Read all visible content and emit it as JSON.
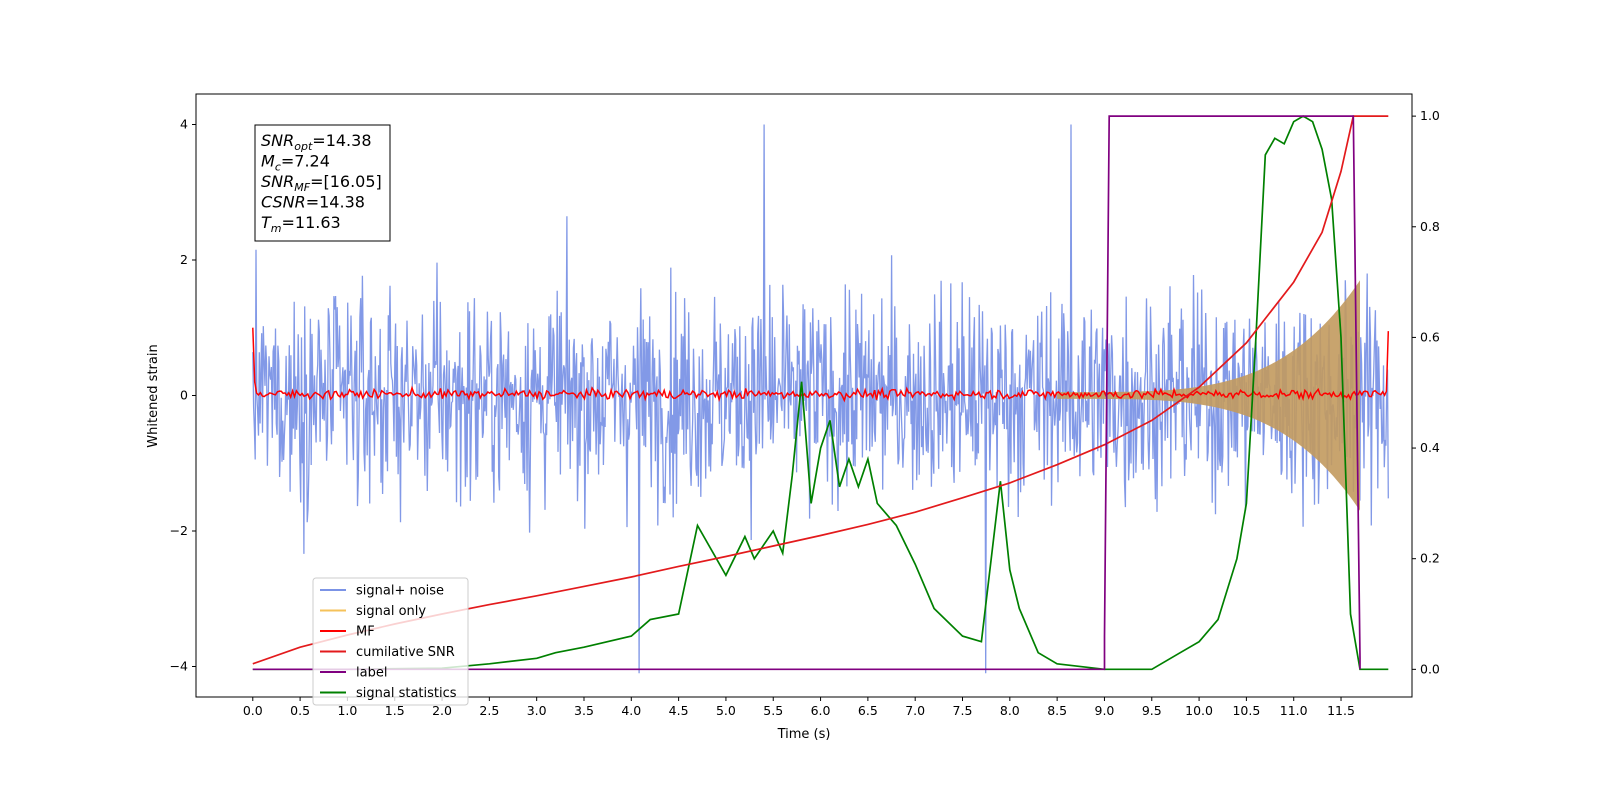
{
  "chart_data": {
    "type": "line",
    "xlabel": "Time (s)",
    "ylabel": "Whitened strain",
    "xlim": [
      -0.6,
      12.25
    ],
    "ylim_left": [
      -4.45,
      4.45
    ],
    "ylim_right": [
      -0.05,
      1.04
    ],
    "x_ticks": [
      "0.0",
      "0.5",
      "1.0",
      "1.5",
      "2.0",
      "2.5",
      "3.0",
      "3.5",
      "4.0",
      "4.5",
      "5.0",
      "5.5",
      "6.0",
      "6.5",
      "7.0",
      "7.5",
      "8.0",
      "8.5",
      "9.0",
      "9.5",
      "10.0",
      "10.5",
      "11.0",
      "11.5"
    ],
    "y_ticks_left": [
      "−4",
      "−2",
      "0",
      "2",
      "4"
    ],
    "y_ticks_right": [
      "0.0",
      "0.2",
      "0.4",
      "0.6",
      "0.8",
      "1.0"
    ],
    "legend_position": "lower-left",
    "legend": [
      {
        "label": "signal+ noise",
        "color": "#7b93e6"
      },
      {
        "label": "signal only",
        "color": "#f5c25a"
      },
      {
        "label": "MF",
        "color": "#ff0000"
      },
      {
        "label": "cumilative SNR",
        "color": "#e31a1c"
      },
      {
        "label": "label",
        "color": "#800080"
      },
      {
        "label": "signal statistics",
        "color": "#008000"
      }
    ],
    "annotation": {
      "lines": [
        {
          "sym": "SNR",
          "sub": "opt",
          "val": "=14.38"
        },
        {
          "sym": "M",
          "sub": "c",
          "val": "=7.24"
        },
        {
          "sym": "SNR",
          "sub": "MF",
          "val": "=[16.05]"
        },
        {
          "sym": "CSNR",
          "sub": "",
          "val": "=14.38"
        },
        {
          "sym": "T",
          "sub": "m",
          "val": "=11.63"
        }
      ]
    },
    "series": [
      {
        "name": "cumilative SNR",
        "axis": "right",
        "x": [
          0.0,
          0.5,
          1.0,
          1.5,
          2.0,
          2.5,
          3.0,
          3.5,
          4.0,
          4.5,
          5.0,
          5.5,
          6.0,
          6.5,
          7.0,
          7.5,
          8.0,
          8.5,
          9.0,
          9.5,
          10.0,
          10.5,
          11.0,
          11.3,
          11.5,
          11.63,
          12.0
        ],
        "y": [
          0.01,
          0.04,
          0.062,
          0.082,
          0.1,
          0.117,
          0.133,
          0.15,
          0.167,
          0.186,
          0.204,
          0.223,
          0.242,
          0.262,
          0.284,
          0.31,
          0.337,
          0.37,
          0.406,
          0.45,
          0.51,
          0.59,
          0.7,
          0.79,
          0.9,
          1.0,
          1.0
        ]
      },
      {
        "name": "label",
        "axis": "right",
        "x": [
          0.0,
          9.0,
          9.0,
          9.05,
          11.63,
          11.7,
          11.7
        ],
        "y": [
          0.0,
          0.0,
          0.06,
          1.0,
          1.0,
          0.02,
          0.0
        ]
      },
      {
        "name": "signal statistics",
        "axis": "right",
        "x": [
          0.0,
          1.0,
          2.0,
          2.5,
          3.0,
          3.2,
          3.5,
          4.0,
          4.2,
          4.5,
          4.7,
          5.0,
          5.2,
          5.3,
          5.5,
          5.6,
          5.7,
          5.8,
          5.9,
          6.0,
          6.1,
          6.2,
          6.3,
          6.4,
          6.5,
          6.6,
          6.8,
          7.0,
          7.2,
          7.5,
          7.7,
          7.9,
          8.0,
          8.1,
          8.3,
          8.5,
          9.0,
          9.5,
          9.8,
          10.0,
          10.2,
          10.4,
          10.5,
          10.6,
          10.7,
          10.8,
          10.9,
          11.0,
          11.1,
          11.2,
          11.3,
          11.4,
          11.5,
          11.6,
          11.7,
          12.0
        ],
        "y": [
          0.0,
          0.0,
          0.002,
          0.01,
          0.02,
          0.03,
          0.04,
          0.06,
          0.09,
          0.1,
          0.26,
          0.17,
          0.24,
          0.2,
          0.25,
          0.21,
          0.35,
          0.52,
          0.3,
          0.4,
          0.45,
          0.33,
          0.38,
          0.33,
          0.38,
          0.3,
          0.26,
          0.19,
          0.11,
          0.06,
          0.05,
          0.34,
          0.18,
          0.11,
          0.03,
          0.01,
          0.0,
          0.0,
          0.03,
          0.05,
          0.09,
          0.2,
          0.3,
          0.6,
          0.93,
          0.96,
          0.95,
          0.99,
          1.0,
          0.99,
          0.94,
          0.85,
          0.6,
          0.1,
          0.0,
          0.0
        ]
      },
      {
        "name": "MF",
        "axis": "left",
        "x_range": [
          0.0,
          12.0
        ],
        "noise_amplitude": 0.08,
        "samples": 600,
        "start_value": 1.0,
        "end_value": 0.95
      },
      {
        "name": "signal+ noise",
        "axis": "left",
        "x_range": [
          0.0,
          12.0
        ],
        "noise_amplitude": 1.25,
        "samples": 1400,
        "peak_values": [
          4.0,
          4.0,
          -4.1,
          -4.1
        ]
      },
      {
        "name": "signal only",
        "axis": "left",
        "x_range": [
          8.5,
          11.7
        ],
        "envelope_start": 0.05,
        "envelope_end": 1.7
      }
    ]
  }
}
